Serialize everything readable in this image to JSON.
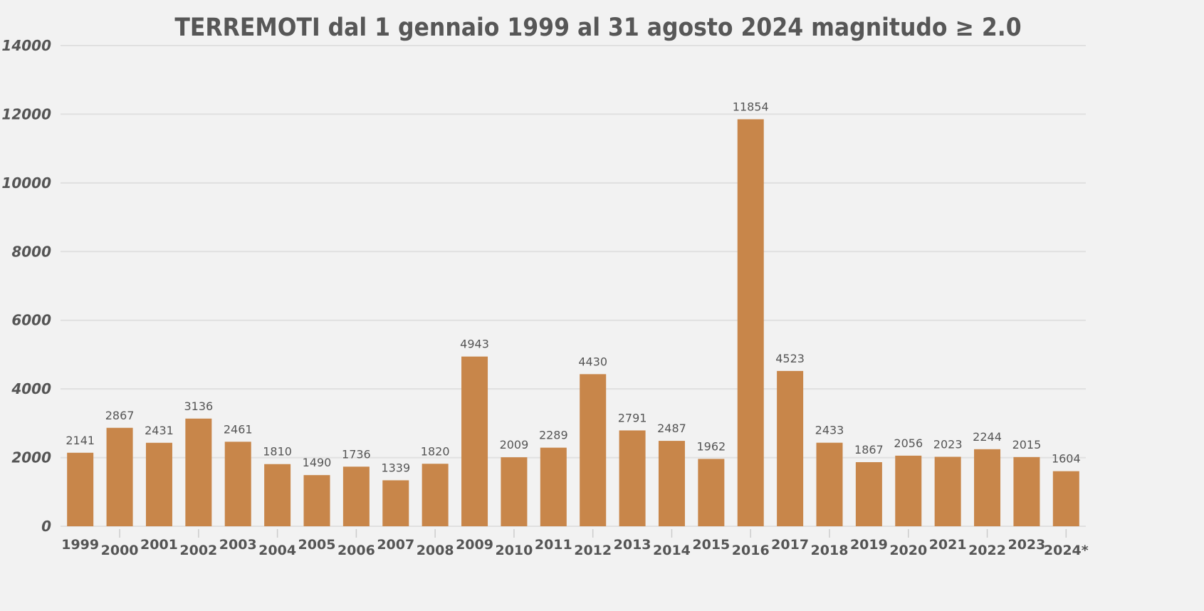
{
  "chart_data": {
    "type": "bar",
    "title": "TERREMOTI dal 1 gennaio 1999 al 31 agosto 2024 magnitudo ≥ 2.0",
    "xlabel": "",
    "ylabel": "",
    "categories": [
      "1999",
      "2000",
      "2001",
      "2002",
      "2003",
      "2004",
      "2005",
      "2006",
      "2007",
      "2008",
      "2009",
      "2010",
      "2011",
      "2012",
      "2013",
      "2014",
      "2015",
      "2016",
      "2017",
      "2018",
      "2019",
      "2020",
      "2021",
      "2022",
      "2023",
      "2024*"
    ],
    "values": [
      2141,
      2867,
      2431,
      3136,
      2461,
      1810,
      1490,
      1736,
      1339,
      1820,
      4943,
      2009,
      2289,
      4430,
      2791,
      2487,
      1962,
      11854,
      4523,
      2433,
      1867,
      2056,
      2023,
      2244,
      2015,
      1604
    ],
    "ylim": [
      0,
      14000
    ],
    "yticks": [
      0,
      2000,
      4000,
      6000,
      8000,
      10000,
      12000,
      14000
    ],
    "grid": true,
    "data_labels": true,
    "colors": {
      "bar": "#c8864a",
      "background": "#f2f2f2",
      "grid": "#e0e0e0",
      "text": "#555555"
    }
  }
}
